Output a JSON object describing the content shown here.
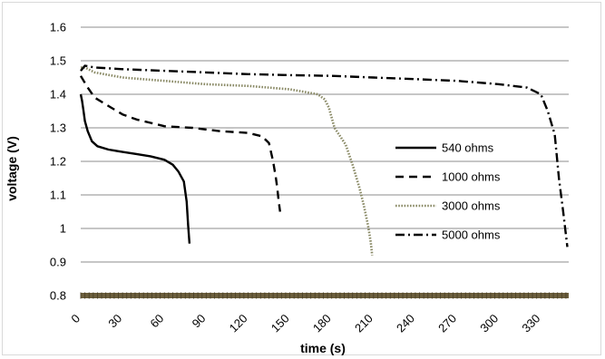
{
  "chart_data": {
    "type": "line",
    "title": "",
    "xlabel": "time (s)",
    "ylabel": "voltage (V)",
    "xlim": [
      0,
      350
    ],
    "ylim": [
      0.8,
      1.6
    ],
    "x_ticks": [
      0,
      30,
      60,
      90,
      120,
      150,
      180,
      210,
      240,
      270,
      300,
      330
    ],
    "x_tick_labels": [
      "0",
      "30",
      "60",
      "90",
      "120",
      "150",
      "180",
      "210",
      "240",
      "270",
      "300",
      "330"
    ],
    "y_ticks": [
      0.8,
      0.9,
      1.0,
      1.1,
      1.2,
      1.3,
      1.4,
      1.5,
      1.6
    ],
    "y_tick_labels": [
      "0.8",
      "0.9",
      "1",
      "1.1",
      "1.2",
      "1.3",
      "1.4",
      "1.5",
      "1.6"
    ],
    "grid": "horizontal",
    "legend": "right",
    "series": [
      {
        "name": "540 ohms",
        "style": "solid",
        "color": "#000000",
        "x": [
          0,
          1,
          2,
          3,
          5,
          8,
          12,
          20,
          30,
          40,
          50,
          60,
          66,
          70,
          74,
          76,
          77,
          78
        ],
        "y": [
          1.4,
          1.38,
          1.35,
          1.32,
          1.29,
          1.26,
          1.245,
          1.235,
          1.228,
          1.222,
          1.215,
          1.205,
          1.19,
          1.17,
          1.14,
          1.08,
          1.01,
          0.955
        ]
      },
      {
        "name": "1000 ohms",
        "style": "dashed",
        "color": "#000000",
        "x": [
          0,
          5,
          10,
          20,
          30,
          40,
          50,
          60,
          80,
          100,
          120,
          130,
          135,
          138,
          140,
          141,
          142,
          143
        ],
        "y": [
          1.455,
          1.42,
          1.39,
          1.365,
          1.34,
          1.325,
          1.315,
          1.305,
          1.3,
          1.29,
          1.285,
          1.275,
          1.255,
          1.2,
          1.15,
          1.12,
          1.08,
          1.05
        ]
      },
      {
        "name": "3000 ohms",
        "style": "dotted",
        "color": "#8a8a66",
        "x": [
          0,
          3,
          10,
          30,
          60,
          90,
          120,
          150,
          170,
          175,
          178,
          182,
          190,
          195,
          200,
          203,
          206,
          208,
          209
        ],
        "y": [
          1.48,
          1.48,
          1.465,
          1.45,
          1.44,
          1.43,
          1.425,
          1.415,
          1.4,
          1.385,
          1.36,
          1.3,
          1.25,
          1.19,
          1.12,
          1.07,
          1.01,
          0.96,
          0.92
        ]
      },
      {
        "name": "5000 ohms",
        "style": "dashdot",
        "color": "#000000",
        "x": [
          0,
          3,
          10,
          30,
          60,
          90,
          120,
          150,
          180,
          210,
          240,
          270,
          300,
          320,
          330,
          335,
          340,
          343,
          346,
          349
        ],
        "y": [
          1.47,
          1.485,
          1.48,
          1.475,
          1.47,
          1.465,
          1.46,
          1.457,
          1.455,
          1.45,
          1.445,
          1.44,
          1.43,
          1.42,
          1.4,
          1.35,
          1.28,
          1.15,
          1.05,
          0.945
        ]
      }
    ]
  }
}
